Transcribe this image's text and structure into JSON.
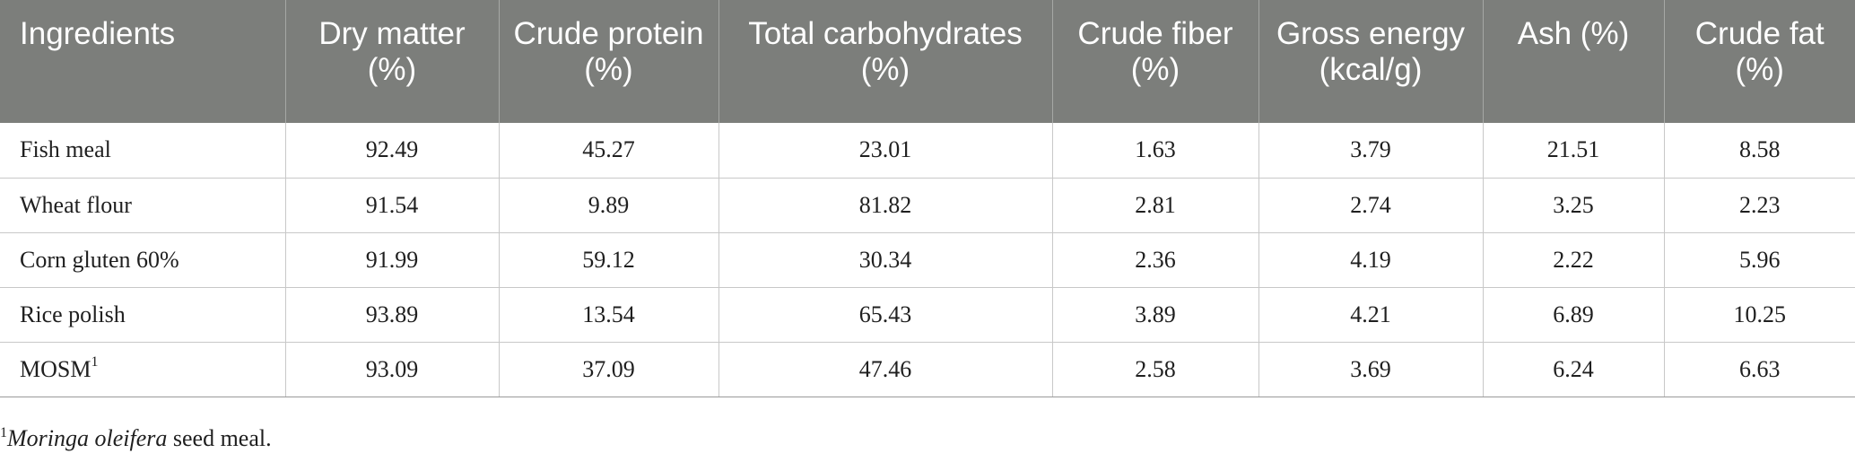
{
  "table": {
    "headers": [
      "Ingredients",
      "Dry matter (%)",
      "Crude protein (%)",
      "Total carbohydrates (%)",
      "Crude fiber (%)",
      "Gross energy (kcal/g)",
      "Ash (%)",
      "Crude fat (%)"
    ],
    "rows": [
      {
        "ingredient": "Fish meal",
        "sup": "",
        "values": [
          "92.49",
          "45.27",
          "23.01",
          "1.63",
          "3.79",
          "21.51",
          "8.58"
        ]
      },
      {
        "ingredient": "Wheat flour",
        "sup": "",
        "values": [
          "91.54",
          "9.89",
          "81.82",
          "2.81",
          "2.74",
          "3.25",
          "2.23"
        ]
      },
      {
        "ingredient": "Corn gluten 60%",
        "sup": "",
        "values": [
          "91.99",
          "59.12",
          "30.34",
          "2.36",
          "4.19",
          "2.22",
          "5.96"
        ]
      },
      {
        "ingredient": "Rice polish",
        "sup": "",
        "values": [
          "93.89",
          "13.54",
          "65.43",
          "3.89",
          "4.21",
          "6.89",
          "10.25"
        ]
      },
      {
        "ingredient": "MOSM",
        "sup": "1",
        "values": [
          "93.09",
          "37.09",
          "47.46",
          "2.58",
          "3.69",
          "6.24",
          "6.63"
        ]
      }
    ]
  },
  "footnote": {
    "marker": "1",
    "species": "Moringa oleifera",
    "text": " seed meal."
  },
  "colors": {
    "header_bg": "#7c7e7b",
    "header_text": "#ffffff",
    "body_text": "#1f1f1f",
    "rule": "#c8c8c8"
  }
}
